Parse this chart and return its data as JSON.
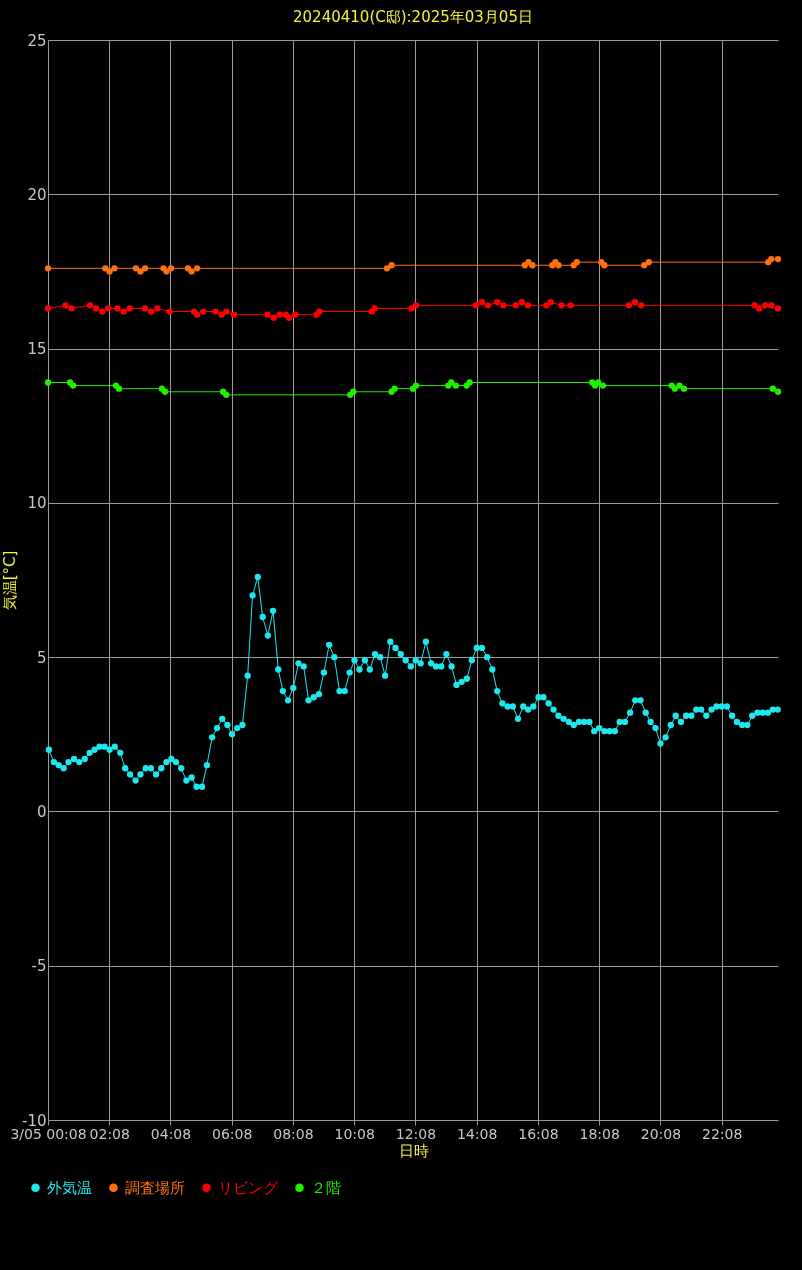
{
  "chart_data": {
    "type": "line",
    "title": "20240410(C邸):2025年03月05日",
    "xlabel": "日時",
    "ylabel": "気温[°C]",
    "xlim": [
      0.13,
      23.97
    ],
    "ylim": [
      -10,
      25
    ],
    "xticks": [
      {
        "value": 0.13,
        "label": "3/05 00:08"
      },
      {
        "value": 2.13,
        "label": "02:08"
      },
      {
        "value": 4.13,
        "label": "04:08"
      },
      {
        "value": 6.13,
        "label": "06:08"
      },
      {
        "value": 8.13,
        "label": "08:08"
      },
      {
        "value": 10.13,
        "label": "10:08"
      },
      {
        "value": 12.13,
        "label": "12:08"
      },
      {
        "value": 14.13,
        "label": "14:08"
      },
      {
        "value": 16.13,
        "label": "16:08"
      },
      {
        "value": 18.13,
        "label": "18:08"
      },
      {
        "value": 20.13,
        "label": "20:08"
      },
      {
        "value": 22.13,
        "label": "22:08"
      }
    ],
    "yticks": [
      -10,
      -5,
      0,
      5,
      10,
      15,
      20,
      25
    ],
    "grid": true,
    "legend": "bottom",
    "marker": "circle",
    "line_style": "solid",
    "series": [
      {
        "name": "外気温",
        "color": "#1ee8ee",
        "x": [
          0.16,
          0.32,
          0.48,
          0.64,
          0.8,
          0.98,
          1.15,
          1.33,
          1.49,
          1.65,
          1.81,
          1.98,
          2.14,
          2.31,
          2.49,
          2.65,
          2.81,
          2.99,
          3.15,
          3.32,
          3.49,
          3.66,
          3.83,
          4.0,
          4.16,
          4.31,
          4.48,
          4.65,
          4.82,
          4.98,
          5.16,
          5.32,
          5.49,
          5.65,
          5.82,
          5.99,
          6.14,
          6.31,
          6.48,
          6.65,
          6.81,
          6.98,
          7.14,
          7.31,
          7.48,
          7.65,
          7.8,
          7.97,
          8.14,
          8.31,
          8.48,
          8.64,
          8.81,
          8.98,
          9.14,
          9.31,
          9.48,
          9.65,
          9.82,
          9.98,
          10.14,
          10.3,
          10.48,
          10.64,
          10.81,
          10.98,
          11.14,
          11.31,
          11.48,
          11.65,
          11.81,
          11.98,
          12.14,
          12.3,
          12.47,
          12.64,
          12.8,
          12.97,
          13.14,
          13.31,
          13.47,
          13.64,
          13.81,
          13.97,
          14.13,
          14.3,
          14.47,
          14.64,
          14.8,
          14.97,
          15.14,
          15.31,
          15.48,
          15.65,
          15.81,
          15.98,
          16.15,
          16.31,
          16.48,
          16.64,
          16.8,
          16.97,
          17.14,
          17.3,
          17.47,
          17.64,
          17.81,
          17.97,
          18.13,
          18.3,
          18.47,
          18.64,
          18.8,
          18.97,
          19.14,
          19.31,
          19.48,
          19.65,
          19.81,
          19.97,
          20.13,
          20.3,
          20.47,
          20.63,
          20.8,
          20.97,
          21.14,
          21.3,
          21.46,
          21.63,
          21.8,
          21.96,
          22.13,
          22.3,
          22.47,
          22.63,
          22.8,
          22.97,
          23.13,
          23.3,
          23.47,
          23.64,
          23.8,
          23.96
        ],
        "values": [
          2.0,
          1.6,
          1.5,
          1.4,
          1.6,
          1.7,
          1.6,
          1.7,
          1.9,
          2.0,
          2.1,
          2.1,
          2.0,
          2.1,
          1.9,
          1.4,
          1.2,
          1.0,
          1.2,
          1.4,
          1.4,
          1.2,
          1.4,
          1.6,
          1.7,
          1.6,
          1.4,
          1.0,
          1.1,
          0.8,
          0.8,
          1.5,
          2.4,
          2.7,
          3.0,
          2.8,
          2.5,
          2.7,
          2.8,
          4.4,
          7.0,
          7.6,
          6.3,
          5.7,
          6.5,
          4.6,
          3.9,
          3.6,
          4.0,
          4.8,
          4.7,
          3.6,
          3.7,
          3.8,
          4.5,
          5.4,
          5.0,
          3.9,
          3.9,
          4.5,
          4.9,
          4.6,
          4.9,
          4.6,
          5.1,
          5.0,
          4.4,
          5.5,
          5.3,
          5.1,
          4.9,
          4.7,
          4.9,
          4.8,
          5.5,
          4.8,
          4.7,
          4.7,
          5.1,
          4.7,
          4.1,
          4.2,
          4.3,
          4.9,
          5.3,
          5.3,
          5.0,
          4.6,
          3.9,
          3.5,
          3.4,
          3.4,
          3.0,
          3.4,
          3.3,
          3.4,
          3.7,
          3.7,
          3.5,
          3.3,
          3.1,
          3.0,
          2.9,
          2.8,
          2.9,
          2.9,
          2.9,
          2.6,
          2.7,
          2.6,
          2.6,
          2.6,
          2.9,
          2.9,
          3.2,
          3.6,
          3.6,
          3.2,
          2.9,
          2.7,
          2.2,
          2.4,
          2.8,
          3.1,
          2.9,
          3.1,
          3.1,
          3.3,
          3.3,
          3.1,
          3.3,
          3.4,
          3.4,
          3.4,
          3.1,
          2.9,
          2.8,
          2.8,
          3.1,
          3.2,
          3.2,
          3.2,
          3.3,
          3.3
        ]
      },
      {
        "name": "調査場所",
        "color": "#ff7010",
        "x": [
          0.13,
          2.0,
          2.14,
          2.3,
          3.0,
          3.15,
          3.3,
          3.9,
          4.0,
          4.15,
          4.7,
          4.82,
          5.0,
          11.2,
          11.35,
          15.7,
          15.82,
          15.95,
          16.6,
          16.7,
          16.8,
          17.3,
          17.4,
          18.2,
          18.3,
          19.6,
          19.75,
          23.65,
          23.75,
          23.97
        ],
        "values": [
          17.6,
          17.6,
          17.5,
          17.6,
          17.6,
          17.5,
          17.6,
          17.6,
          17.5,
          17.6,
          17.6,
          17.5,
          17.6,
          17.6,
          17.7,
          17.7,
          17.8,
          17.7,
          17.7,
          17.8,
          17.7,
          17.7,
          17.8,
          17.8,
          17.7,
          17.7,
          17.8,
          17.8,
          17.9,
          17.9
        ]
      },
      {
        "name": "リビング",
        "color": "#ff0000",
        "x": [
          0.13,
          0.7,
          0.9,
          1.5,
          1.7,
          1.9,
          2.1,
          2.4,
          2.6,
          2.8,
          3.3,
          3.5,
          3.7,
          4.1,
          4.9,
          5.0,
          5.2,
          5.6,
          5.8,
          5.95,
          6.2,
          7.3,
          7.5,
          7.7,
          7.9,
          8.0,
          8.2,
          8.9,
          9.0,
          10.7,
          10.8,
          12.0,
          12.15,
          14.1,
          14.3,
          14.5,
          14.8,
          15.0,
          15.4,
          15.6,
          15.8,
          16.4,
          16.55,
          16.9,
          17.2,
          19.1,
          19.3,
          19.5,
          23.2,
          23.35,
          23.55,
          23.75,
          23.97
        ],
        "values": [
          16.3,
          16.4,
          16.3,
          16.4,
          16.3,
          16.2,
          16.3,
          16.3,
          16.2,
          16.3,
          16.3,
          16.2,
          16.3,
          16.2,
          16.2,
          16.1,
          16.2,
          16.2,
          16.1,
          16.2,
          16.1,
          16.1,
          16.0,
          16.1,
          16.1,
          16.0,
          16.1,
          16.1,
          16.2,
          16.2,
          16.3,
          16.3,
          16.4,
          16.4,
          16.5,
          16.4,
          16.5,
          16.4,
          16.4,
          16.5,
          16.4,
          16.4,
          16.5,
          16.4,
          16.4,
          16.4,
          16.5,
          16.4,
          16.4,
          16.3,
          16.4,
          16.4,
          16.3
        ]
      },
      {
        "name": "２階",
        "color": "#22ee00",
        "x": [
          0.13,
          0.85,
          0.95,
          2.35,
          2.45,
          3.85,
          3.95,
          5.85,
          5.95,
          10.0,
          10.1,
          11.35,
          11.45,
          12.05,
          12.15,
          13.2,
          13.3,
          13.45,
          13.8,
          13.9,
          17.9,
          18.0,
          18.1,
          18.25,
          20.5,
          20.6,
          20.75,
          20.9,
          23.8,
          23.97
        ],
        "values": [
          13.9,
          13.9,
          13.8,
          13.8,
          13.7,
          13.7,
          13.6,
          13.6,
          13.5,
          13.5,
          13.6,
          13.6,
          13.7,
          13.7,
          13.8,
          13.8,
          13.9,
          13.8,
          13.8,
          13.9,
          13.9,
          13.8,
          13.9,
          13.8,
          13.8,
          13.7,
          13.8,
          13.7,
          13.7,
          13.6
        ]
      }
    ]
  }
}
